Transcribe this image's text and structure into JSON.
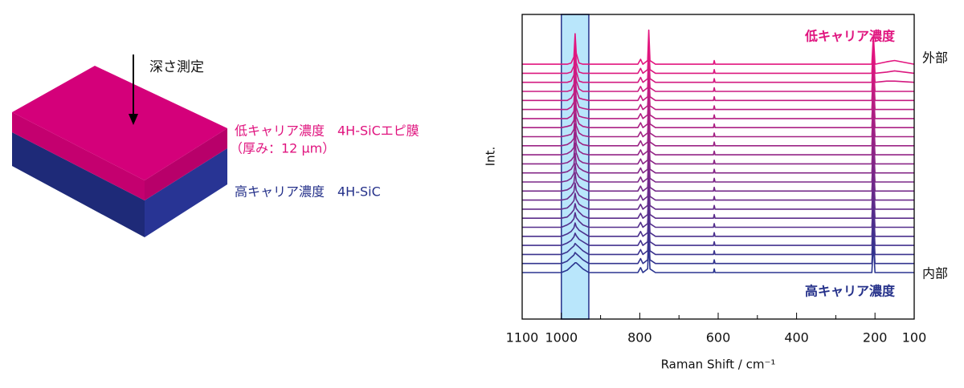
{
  "diagram": {
    "arrow_label": "深さ測定",
    "top_layer": "低キャリア濃度　4H-SiCエピ膜",
    "top_layer_note": "（厚み：12 μm）",
    "bottom_layer": "高キャリア濃度　4H-SiC"
  },
  "chart_data": {
    "type": "line",
    "x_label": "Raman Shift / cm⁻¹",
    "y_label": "Int.",
    "annotations": {
      "top_label": "低キャリア濃度",
      "bottom_label": "高キャリア濃度",
      "outer": "外部",
      "inner": "内部"
    },
    "xlim": [
      1100,
      100
    ],
    "xticks": [
      1100,
      1000,
      800,
      600,
      400,
      200,
      100
    ],
    "xminor_ticks": [
      900,
      700,
      500,
      300
    ],
    "ylim": [
      0,
      250
    ],
    "highlight": [
      1000,
      930
    ],
    "highlight_color": "#b9e6fb",
    "x": [
      1100,
      1000,
      985,
      975,
      968,
      965,
      962,
      955,
      945,
      930,
      805,
      798,
      792,
      780,
      777,
      774,
      760,
      612,
      610,
      608,
      208,
      204,
      200,
      170,
      150,
      100
    ],
    "series": [
      {
        "color": "#2b3590",
        "values": [
          0,
          0,
          2,
          5,
          7,
          8,
          8,
          6,
          3,
          0,
          0,
          4,
          0,
          3,
          24,
          3,
          0,
          0,
          3,
          0,
          0,
          24,
          0,
          0,
          0,
          0
        ]
      },
      {
        "color": "#33348f",
        "values": [
          0,
          0,
          2,
          5,
          7,
          9,
          8,
          6,
          3,
          0,
          0,
          4,
          0,
          3,
          24,
          3,
          0,
          0,
          3,
          0,
          0,
          24,
          0,
          0,
          0,
          0
        ]
      },
      {
        "color": "#3b338e",
        "values": [
          0,
          0,
          2,
          5,
          7,
          9,
          8,
          6,
          3,
          0,
          0,
          4,
          0,
          3,
          24,
          3,
          0,
          0,
          3,
          0,
          0,
          24,
          0,
          0,
          0,
          0
        ]
      },
      {
        "color": "#43318e",
        "values": [
          0,
          0,
          2,
          4,
          7,
          10,
          8,
          5,
          3,
          0,
          0,
          4,
          0,
          3,
          24,
          3,
          0,
          0,
          3,
          0,
          0,
          24,
          0,
          0,
          0,
          0
        ]
      },
      {
        "color": "#4b308d",
        "values": [
          0,
          0,
          2,
          4,
          7,
          11,
          8,
          5,
          3,
          0,
          0,
          4,
          0,
          3,
          24,
          3,
          0,
          0,
          3,
          0,
          0,
          24,
          0,
          0,
          0,
          0
        ]
      },
      {
        "color": "#532f8c",
        "values": [
          0,
          0,
          2,
          4,
          7,
          12,
          8,
          5,
          2,
          0,
          0,
          4,
          0,
          3,
          24,
          3,
          0,
          0,
          3,
          0,
          0,
          24,
          0,
          0,
          0,
          0
        ]
      },
      {
        "color": "#5b2d8b",
        "values": [
          0,
          0,
          1,
          4,
          7,
          12,
          8,
          5,
          2,
          0,
          0,
          4,
          0,
          3,
          24,
          3,
          0,
          0,
          3,
          0,
          0,
          24,
          0,
          0,
          0,
          0
        ]
      },
      {
        "color": "#632c8a",
        "values": [
          0,
          0,
          1,
          4,
          7,
          13,
          8,
          4,
          2,
          0,
          0,
          4,
          0,
          3,
          24,
          3,
          0,
          0,
          3,
          0,
          0,
          24,
          0,
          0,
          0,
          0
        ]
      },
      {
        "color": "#6b2b8a",
        "values": [
          0,
          0,
          1,
          4,
          7,
          14,
          8,
          4,
          2,
          0,
          0,
          4,
          0,
          3,
          24,
          3,
          0,
          0,
          3,
          0,
          0,
          24,
          0,
          0,
          0,
          0
        ]
      },
      {
        "color": "#732989",
        "values": [
          0,
          0,
          1,
          3,
          7,
          15,
          8,
          4,
          2,
          0,
          0,
          4,
          0,
          3,
          24,
          3,
          0,
          0,
          3,
          0,
          0,
          24,
          0,
          0,
          0,
          0
        ]
      },
      {
        "color": "#7b2888",
        "values": [
          0,
          0,
          1,
          3,
          7,
          15,
          8,
          4,
          2,
          0,
          0,
          4,
          0,
          3,
          24,
          3,
          0,
          0,
          3,
          0,
          0,
          24,
          0,
          0,
          0,
          0
        ]
      },
      {
        "color": "#832787",
        "values": [
          0,
          0,
          1,
          3,
          7,
          16,
          8,
          4,
          2,
          0,
          0,
          4,
          0,
          3,
          24,
          3,
          0,
          0,
          3,
          0,
          0,
          24,
          0,
          0,
          0,
          0
        ]
      },
      {
        "color": "#8b2687",
        "values": [
          0,
          0,
          1,
          3,
          6,
          17,
          9,
          3,
          1,
          0,
          0,
          4,
          0,
          3,
          24,
          3,
          0,
          0,
          3,
          0,
          0,
          24,
          0,
          0,
          0,
          0
        ]
      },
      {
        "color": "#932486",
        "values": [
          0,
          0,
          1,
          3,
          6,
          18,
          9,
          3,
          1,
          0,
          0,
          4,
          0,
          3,
          24,
          3,
          0,
          0,
          3,
          0,
          0,
          24,
          0,
          0,
          0,
          0
        ]
      },
      {
        "color": "#9b2385",
        "values": [
          0,
          0,
          1,
          3,
          6,
          18,
          9,
          3,
          1,
          0,
          0,
          4,
          0,
          3,
          24,
          3,
          0,
          0,
          3,
          0,
          0,
          24,
          0,
          0,
          0,
          0
        ]
      },
      {
        "color": "#a32284",
        "values": [
          0,
          0,
          1,
          2,
          6,
          19,
          9,
          3,
          1,
          0,
          0,
          4,
          0,
          3,
          24,
          3,
          0,
          0,
          3,
          0,
          0,
          24,
          0,
          0,
          0,
          0
        ]
      },
      {
        "color": "#ab2083",
        "values": [
          0,
          0,
          1,
          2,
          6,
          20,
          9,
          3,
          1,
          0,
          0,
          4,
          0,
          3,
          24,
          3,
          0,
          0,
          3,
          0,
          0,
          24,
          0,
          0,
          0,
          0
        ]
      },
      {
        "color": "#b31f83",
        "values": [
          0,
          0,
          0,
          2,
          6,
          21,
          9,
          2,
          1,
          0,
          0,
          4,
          0,
          3,
          24,
          3,
          0,
          0,
          3,
          0,
          0,
          24,
          0,
          0,
          0,
          0
        ]
      },
      {
        "color": "#bb1e82",
        "values": [
          0,
          0,
          0,
          2,
          6,
          21,
          9,
          2,
          1,
          0,
          0,
          4,
          0,
          3,
          24,
          3,
          0,
          0,
          3,
          0,
          0,
          24,
          0,
          0,
          0,
          0
        ]
      },
      {
        "color": "#c31c81",
        "values": [
          0,
          0,
          0,
          2,
          6,
          22,
          9,
          2,
          1,
          0,
          0,
          4,
          0,
          3,
          24,
          3,
          0,
          0,
          3,
          0,
          0,
          24,
          0,
          0,
          0,
          0
        ]
      },
      {
        "color": "#cb1b80",
        "values": [
          0,
          0,
          0,
          1,
          6,
          23,
          9,
          2,
          0,
          0,
          0,
          4,
          0,
          3,
          24,
          3,
          0,
          0,
          3,
          0,
          0,
          24,
          0,
          0,
          0,
          0
        ]
      },
      {
        "color": "#d31a80",
        "values": [
          0,
          0,
          0,
          1,
          6,
          24,
          9,
          1,
          0,
          0,
          0,
          4,
          0,
          3,
          24,
          3,
          0,
          0,
          3,
          0,
          0,
          24,
          0,
          1,
          1,
          0
        ]
      },
      {
        "color": "#db187f",
        "values": [
          0,
          0,
          0,
          1,
          6,
          24,
          9,
          1,
          0,
          0,
          0,
          4,
          0,
          3,
          24,
          3,
          0,
          0,
          3,
          0,
          0,
          24,
          0,
          1,
          2,
          0
        ]
      },
      {
        "color": "#e3157f",
        "values": [
          0,
          0,
          0,
          1,
          6,
          25,
          9,
          1,
          0,
          0,
          0,
          4,
          0,
          3,
          28,
          3,
          0,
          0,
          3,
          0,
          0,
          24,
          0,
          2,
          3,
          0
        ]
      }
    ]
  }
}
